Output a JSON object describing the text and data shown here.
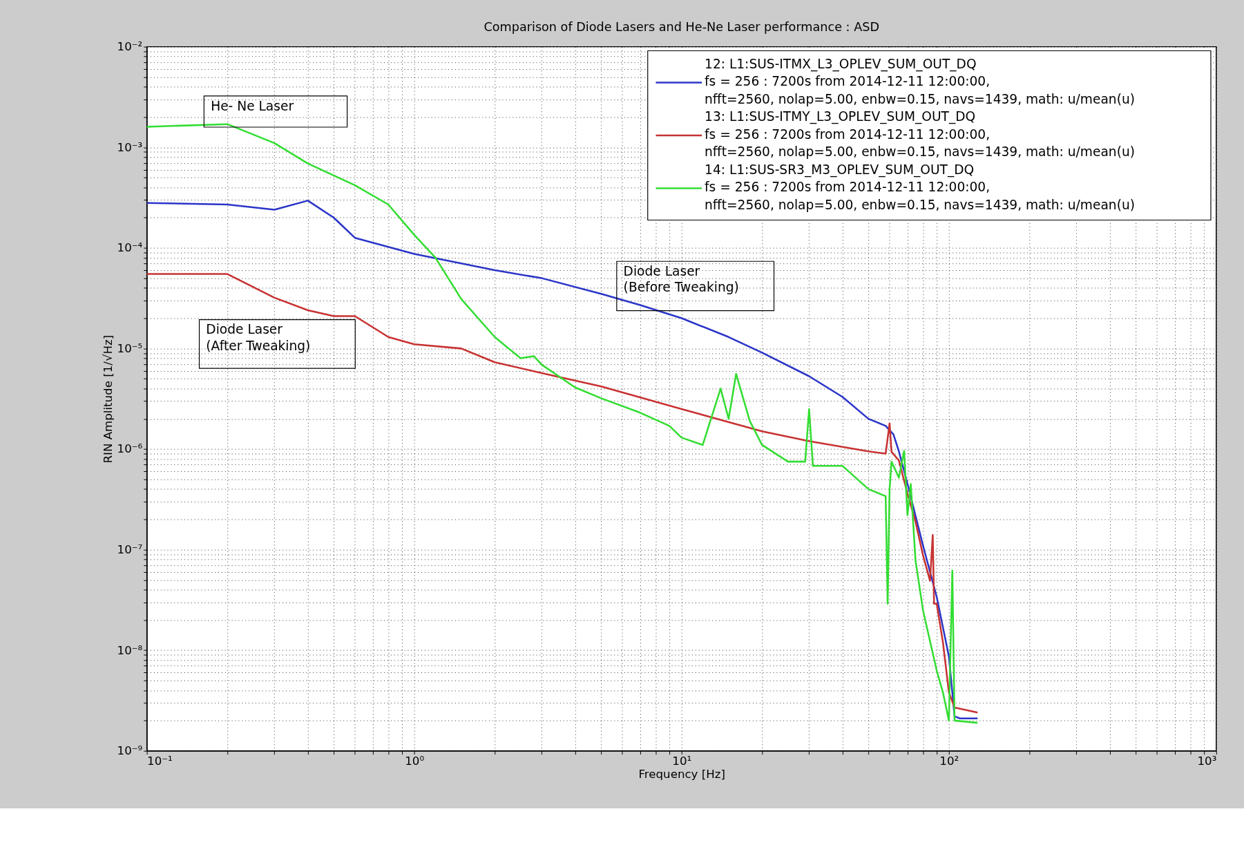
{
  "chart_data": {
    "type": "line",
    "title": "Comparison of Diode Lasers and He-Ne Laser performance : ASD",
    "xlabel": "Frequency [Hz]",
    "ylabel": "RIN Amplitude [1/√Hz]",
    "log": "xy",
    "grid": true,
    "legend": "top right",
    "line_style": "solid",
    "marker": "none",
    "xlim": [
      0.1,
      1000
    ],
    "ylim": [
      1e-09,
      0.01
    ],
    "xticks": [
      {
        "value": 0.1,
        "label": "10⁻¹"
      },
      {
        "value": 0.2,
        "label": null
      },
      {
        "value": 0.3,
        "label": null
      },
      {
        "value": 0.4,
        "label": null
      },
      {
        "value": 0.5,
        "label": null
      },
      {
        "value": 0.6,
        "label": null
      },
      {
        "value": 0.7,
        "label": null
      },
      {
        "value": 0.8,
        "label": null
      },
      {
        "value": 0.9,
        "label": null
      },
      {
        "value": 1,
        "label": "10⁰"
      },
      {
        "value": 2,
        "label": null
      },
      {
        "value": 3,
        "label": null
      },
      {
        "value": 4,
        "label": null
      },
      {
        "value": 5,
        "label": null
      },
      {
        "value": 6,
        "label": null
      },
      {
        "value": 7,
        "label": null
      },
      {
        "value": 8,
        "label": null
      },
      {
        "value": 9,
        "label": null
      },
      {
        "value": 10,
        "label": "10¹"
      },
      {
        "value": 20,
        "label": null
      },
      {
        "value": 30,
        "label": null
      },
      {
        "value": 40,
        "label": null
      },
      {
        "value": 50,
        "label": null
      },
      {
        "value": 60,
        "label": null
      },
      {
        "value": 70,
        "label": null
      },
      {
        "value": 80,
        "label": null
      },
      {
        "value": 90,
        "label": null
      },
      {
        "value": 100,
        "label": "10²"
      },
      {
        "value": 200,
        "label": null
      },
      {
        "value": 300,
        "label": null
      },
      {
        "value": 400,
        "label": null
      },
      {
        "value": 500,
        "label": null
      },
      {
        "value": 600,
        "label": null
      },
      {
        "value": 700,
        "label": null
      },
      {
        "value": 800,
        "label": null
      },
      {
        "value": 900,
        "label": null
      },
      {
        "value": 1000,
        "label": "10³"
      }
    ],
    "yticks": [
      {
        "value": 1e-09,
        "label": "10⁻⁹"
      },
      {
        "value": 2e-09,
        "label": null
      },
      {
        "value": 3e-09,
        "label": null
      },
      {
        "value": 4e-09,
        "label": null
      },
      {
        "value": 5e-09,
        "label": null
      },
      {
        "value": 6e-09,
        "label": null
      },
      {
        "value": 7e-09,
        "label": null
      },
      {
        "value": 8e-09,
        "label": null
      },
      {
        "value": 9e-09,
        "label": null
      },
      {
        "value": 1e-08,
        "label": "10⁻⁸"
      },
      {
        "value": 2e-08,
        "label": null
      },
      {
        "value": 3e-08,
        "label": null
      },
      {
        "value": 4e-08,
        "label": null
      },
      {
        "value": 5e-08,
        "label": null
      },
      {
        "value": 6e-08,
        "label": null
      },
      {
        "value": 7e-08,
        "label": null
      },
      {
        "value": 8e-08,
        "label": null
      },
      {
        "value": 9e-08,
        "label": null
      },
      {
        "value": 1e-07,
        "label": "10⁻⁷"
      },
      {
        "value": 2e-07,
        "label": null
      },
      {
        "value": 3e-07,
        "label": null
      },
      {
        "value": 4e-07,
        "label": null
      },
      {
        "value": 5e-07,
        "label": null
      },
      {
        "value": 6e-07,
        "label": null
      },
      {
        "value": 7e-07,
        "label": null
      },
      {
        "value": 8e-07,
        "label": null
      },
      {
        "value": 9e-07,
        "label": null
      },
      {
        "value": 1e-06,
        "label": "10⁻⁶"
      },
      {
        "value": 2e-06,
        "label": null
      },
      {
        "value": 3e-06,
        "label": null
      },
      {
        "value": 4e-06,
        "label": null
      },
      {
        "value": 5e-06,
        "label": null
      },
      {
        "value": 6e-06,
        "label": null
      },
      {
        "value": 7e-06,
        "label": null
      },
      {
        "value": 8e-06,
        "label": null
      },
      {
        "value": 9e-06,
        "label": null
      },
      {
        "value": 1e-05,
        "label": "10⁻⁵"
      },
      {
        "value": 2e-05,
        "label": null
      },
      {
        "value": 3e-05,
        "label": null
      },
      {
        "value": 4e-05,
        "label": null
      },
      {
        "value": 5e-05,
        "label": null
      },
      {
        "value": 6e-05,
        "label": null
      },
      {
        "value": 7e-05,
        "label": null
      },
      {
        "value": 8e-05,
        "label": null
      },
      {
        "value": 9e-05,
        "label": null
      },
      {
        "value": 0.0001,
        "label": "10⁻⁴"
      },
      {
        "value": 0.0002,
        "label": null
      },
      {
        "value": 0.0003,
        "label": null
      },
      {
        "value": 0.0004,
        "label": null
      },
      {
        "value": 0.0005,
        "label": null
      },
      {
        "value": 0.0006,
        "label": null
      },
      {
        "value": 0.0007,
        "label": null
      },
      {
        "value": 0.0008,
        "label": null
      },
      {
        "value": 0.0009,
        "label": null
      },
      {
        "value": 0.001,
        "label": "10⁻³"
      },
      {
        "value": 0.002,
        "label": null
      },
      {
        "value": 0.003,
        "label": null
      },
      {
        "value": 0.004,
        "label": null
      },
      {
        "value": 0.005,
        "label": null
      },
      {
        "value": 0.006,
        "label": null
      },
      {
        "value": 0.007,
        "label": null
      },
      {
        "value": 0.008,
        "label": null
      },
      {
        "value": 0.009,
        "label": null
      },
      {
        "value": 0.01,
        "label": "10⁻²"
      }
    ],
    "series": [
      {
        "name": "12: L1:SUS-ITMX_L3_OPLEV_SUM_OUT_DQ\nfs = 256 : 7200s from 2014-12-11 12:00:00,\nnfft=2560, nolap=5.00, enbw=0.15, navs=1439, math: u/mean(u)",
        "color": "#2b35c8",
        "x": [
          0.1,
          0.2,
          0.3,
          0.4,
          0.5,
          0.6,
          1,
          2,
          3,
          5,
          7,
          10,
          15,
          20,
          30,
          40,
          50,
          58,
          62,
          65,
          70,
          80,
          90,
          100,
          105,
          110,
          128
        ],
        "values": [
          0.00028,
          0.00027,
          0.00024,
          0.000295,
          0.0002,
          0.000126,
          8.7e-05,
          6e-05,
          5e-05,
          3.5e-05,
          2.7e-05,
          2e-05,
          1.3e-05,
          9.1e-06,
          5.3e-06,
          3.3e-06,
          2e-06,
          1.7e-06,
          1.4e-06,
          9.5e-07,
          4.5e-07,
          1.1e-07,
          3.4e-08,
          8.7e-09,
          2.2e-09,
          2.1e-09,
          2.1e-09
        ]
      },
      {
        "name": "13: L1:SUS-ITMY_L3_OPLEV_SUM_OUT_DQ\nfs = 256 : 7200s from 2014-12-11 12:00:00,\nnfft=2560, nolap=5.00, enbw=0.15, navs=1439, math: u/mean(u)",
        "color": "#c83232",
        "x": [
          0.1,
          0.2,
          0.3,
          0.4,
          0.5,
          0.6,
          0.8,
          1,
          1.5,
          2,
          3,
          5,
          10,
          20,
          30,
          50,
          58,
          60,
          61,
          65,
          70,
          75,
          80,
          85,
          87,
          88,
          90,
          95,
          100,
          105,
          128
        ],
        "values": [
          5.5e-05,
          5.5e-05,
          3.2e-05,
          2.4e-05,
          2.1e-05,
          2.1e-05,
          1.3e-05,
          1.1e-05,
          1e-05,
          7.3e-06,
          5.7e-06,
          4.2e-06,
          2.5e-06,
          1.5e-06,
          1.2e-06,
          9.5e-07,
          9e-07,
          1.8e-06,
          9.4e-07,
          7.7e-07,
          3.6e-07,
          1.9e-07,
          8.8e-08,
          4.9e-08,
          1.4e-07,
          2.9e-08,
          2.9e-08,
          1.2e-08,
          3.8e-09,
          2.7e-09,
          2.4e-09
        ]
      },
      {
        "name": "14: L1:SUS-SR3_M3_OPLEV_SUM_OUT_DQ\nfs = 256 : 7200s from 2014-12-11 12:00:00,\nnfft=2560, nolap=5.00, enbw=0.15, navs=1439, math: u/mean(u)",
        "color": "#33dd33",
        "x": [
          0.1,
          0.2,
          0.3,
          0.4,
          0.6,
          0.8,
          1,
          1.2,
          1.5,
          2,
          2.5,
          2.8,
          3,
          4,
          5,
          7,
          9,
          10,
          12,
          14,
          15,
          16,
          18,
          20,
          25,
          29,
          30,
          31,
          40,
          50,
          58,
          59,
          60,
          61,
          65,
          68,
          70,
          72,
          75,
          80,
          90,
          95,
          100,
          103,
          105,
          128
        ],
        "values": [
          0.0016,
          0.0017,
          0.0011,
          0.00069,
          0.00042,
          0.00027,
          0.000135,
          8e-05,
          3.1e-05,
          1.3e-05,
          8e-06,
          8.4e-06,
          6.9e-06,
          4.1e-06,
          3.2e-06,
          2.3e-06,
          1.7e-06,
          1.3e-06,
          1.1e-06,
          4e-06,
          2e-06,
          5.6e-06,
          1.9e-06,
          1.1e-06,
          7.5e-07,
          7.5e-07,
          2.5e-06,
          6.8e-07,
          6.8e-07,
          4e-07,
          3.4e-07,
          2.9e-08,
          4e-07,
          7.5e-07,
          5.2e-07,
          9.6e-07,
          2.2e-07,
          4.5e-07,
          7.8e-08,
          2.5e-08,
          6.3e-09,
          3.8e-09,
          2e-09,
          6.2e-08,
          2e-09,
          1.9e-09
        ]
      }
    ],
    "annotations": [
      "He- Ne Laser",
      "Diode Laser\n(After Tweaking)",
      "Diode Laser\n(Before Tweaking)"
    ]
  }
}
